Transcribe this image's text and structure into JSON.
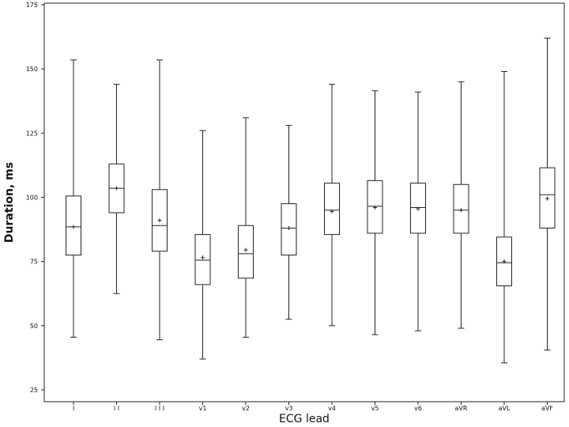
{
  "chart_data": {
    "type": "boxplot",
    "title": "",
    "xlabel": "ECG lead",
    "ylabel": "Duration, ms",
    "ylim": [
      25,
      175
    ],
    "yticks": [
      25,
      50,
      75,
      100,
      125,
      150,
      175
    ],
    "grid": false,
    "legend": "none",
    "categories": [
      "I",
      "II",
      "III",
      "v1",
      "v2",
      "v3",
      "v4",
      "v5",
      "v6",
      "aVR",
      "aVL",
      "aVF"
    ],
    "tick_labels": [
      "I",
      "I I",
      "I I I",
      "v1",
      "v2",
      "v3",
      "v4",
      "v5",
      "v6",
      "aVR",
      "aVL",
      "aVF"
    ],
    "series": [
      {
        "min": [
          45.5,
          62.5,
          44.5,
          37,
          45.5,
          52.5,
          50,
          46.5,
          48,
          49,
          35.5,
          40.5
        ],
        "q1": [
          77.5,
          94,
          79,
          66,
          68.5,
          77.5,
          85.5,
          86,
          86,
          86,
          65.5,
          88
        ],
        "median": [
          88.5,
          103.5,
          89,
          75.5,
          78,
          88,
          95,
          96.5,
          96,
          95,
          74.5,
          101
        ],
        "q3": [
          100.5,
          113,
          103,
          85.5,
          89,
          97.5,
          105.5,
          106.5,
          105.5,
          105,
          84.5,
          111.5
        ],
        "max": [
          153.5,
          144,
          153.5,
          126,
          131,
          128,
          144,
          141.5,
          141,
          145,
          149,
          162
        ],
        "mean": [
          88.5,
          103.5,
          91,
          76.5,
          79.5,
          88,
          94.5,
          96,
          95.5,
          95,
          75,
          99.5
        ]
      }
    ],
    "colors": {
      "line": "#222222",
      "background": "#ffffff"
    }
  }
}
